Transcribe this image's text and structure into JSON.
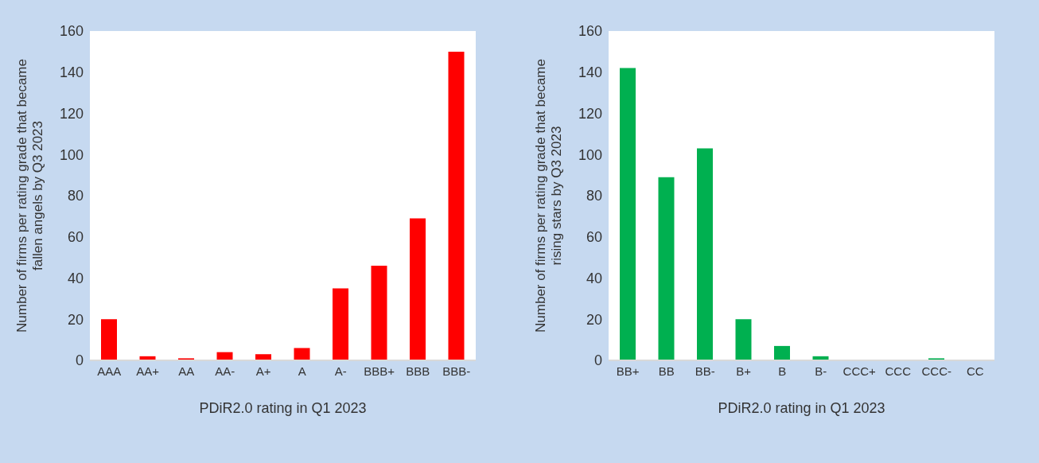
{
  "chart_data": [
    {
      "type": "bar",
      "xlabel": "PDiR2.0 rating in Q1 2023",
      "ylabel": "Number of firms per rating grade that became fallen angels by Q3 2023",
      "categories": [
        "AAA",
        "AA+",
        "AA",
        "AA-",
        "A+",
        "A",
        "A-",
        "BBB+",
        "BBB",
        "BBB-"
      ],
      "values": [
        20,
        2,
        1,
        4,
        3,
        6,
        35,
        46,
        69,
        150
      ],
      "color": "#ff0000",
      "ylim": [
        0,
        160
      ],
      "yticks": [
        0,
        20,
        40,
        60,
        80,
        100,
        120,
        140,
        160
      ]
    },
    {
      "type": "bar",
      "xlabel": "PDiR2.0 rating in Q1 2023",
      "ylabel": "Number of firms per rating grade that became rising stars by Q3 2023",
      "categories": [
        "BB+",
        "BB",
        "BB-",
        "B+",
        "B",
        "B-",
        "CCC+",
        "CCC",
        "CCC-",
        "CC"
      ],
      "values": [
        142,
        89,
        103,
        20,
        7,
        2,
        0,
        0,
        1,
        0
      ],
      "color": "#00b050",
      "ylim": [
        0,
        160
      ],
      "yticks": [
        0,
        20,
        40,
        60,
        80,
        100,
        120,
        140,
        160
      ]
    }
  ]
}
